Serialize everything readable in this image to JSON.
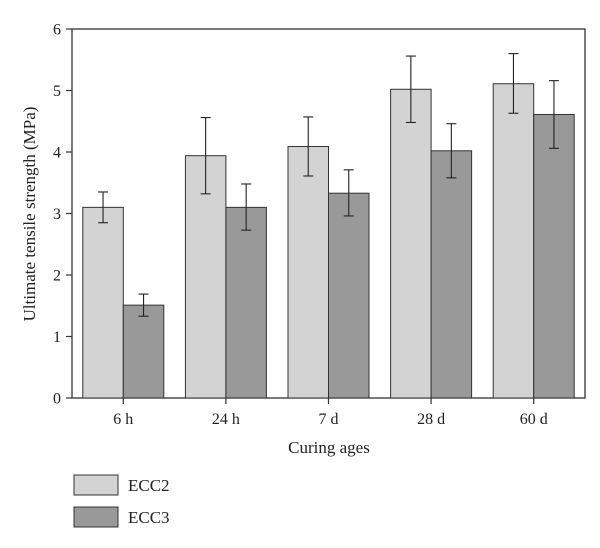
{
  "chart_data": {
    "type": "bar",
    "categories": [
      "6 h",
      "24 h",
      "7 d",
      "28 d",
      "60 d"
    ],
    "series": [
      {
        "name": "ECC2",
        "color": "#d3d3d3",
        "values": [
          3.1,
          3.94,
          4.09,
          5.02,
          5.11
        ],
        "error_low": [
          2.85,
          3.32,
          3.61,
          4.48,
          4.63
        ],
        "error_high": [
          3.35,
          4.56,
          4.57,
          5.56,
          5.6
        ]
      },
      {
        "name": "ECC3",
        "color": "#999999",
        "values": [
          1.51,
          3.1,
          3.33,
          4.02,
          4.61
        ],
        "error_low": [
          1.33,
          2.73,
          2.96,
          3.58,
          4.06
        ],
        "error_high": [
          1.69,
          3.48,
          3.71,
          4.46,
          5.16
        ]
      }
    ],
    "xlabel": "Curing ages",
    "ylabel": "Ultimate tensile strength (MPa)",
    "ylim": [
      0,
      6
    ],
    "yticks": [
      "0",
      "1",
      "2",
      "3",
      "4",
      "5",
      "6"
    ],
    "grid": false,
    "legend_position": "bottom-left"
  }
}
